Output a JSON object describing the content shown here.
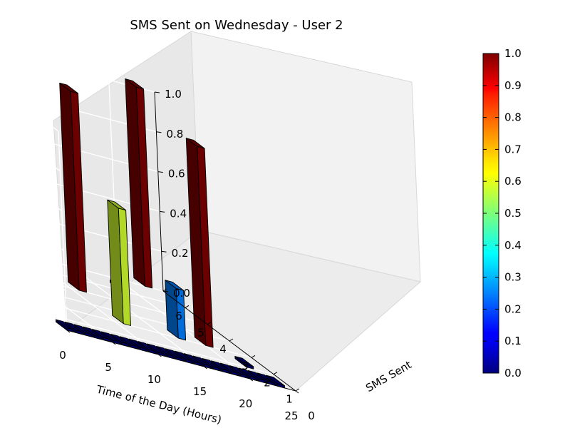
{
  "chart_data": {
    "type": "bar3d",
    "title": "SMS Sent on Wednesday - User 2",
    "xlabel": "Time of the Day (Hours)",
    "ylabel": "SMS Sent",
    "zlabel": "",
    "xlim": [
      0,
      25
    ],
    "ylim": [
      0,
      6
    ],
    "zlim": [
      0,
      1
    ],
    "xticks": [
      "0",
      "5",
      "10",
      "15",
      "20",
      "25"
    ],
    "yticks": [
      "0",
      "1",
      "2",
      "3",
      "4",
      "5",
      "6"
    ],
    "zticks": [
      "0.0",
      "0.2",
      "0.4",
      "0.6",
      "0.8",
      "1.0"
    ],
    "grid": true,
    "colormap": "jet",
    "colorbar": {
      "min": 0,
      "max": 1,
      "ticks": [
        "0.0",
        "0.1",
        "0.2",
        "0.3",
        "0.4",
        "0.5",
        "0.6",
        "0.7",
        "0.8",
        "0.9",
        "1.0"
      ]
    },
    "bars": [
      {
        "hour": 0,
        "sms": 0,
        "value": 0
      },
      {
        "hour": 1,
        "sms": 0,
        "value": 0
      },
      {
        "hour": 2,
        "sms": 0,
        "value": 0
      },
      {
        "hour": 3,
        "sms": 0,
        "value": 0
      },
      {
        "hour": 4,
        "sms": 0,
        "value": 0
      },
      {
        "hour": 5,
        "sms": 0,
        "value": 0
      },
      {
        "hour": 6,
        "sms": 0,
        "value": 0
      },
      {
        "hour": 7,
        "sms": 0,
        "value": 0
      },
      {
        "hour": 8,
        "sms": 0,
        "value": 0
      },
      {
        "hour": 9,
        "sms": 0,
        "value": 0
      },
      {
        "hour": 10,
        "sms": 0,
        "value": 0
      },
      {
        "hour": 11,
        "sms": 0,
        "value": 0
      },
      {
        "hour": 12,
        "sms": 0,
        "value": 0
      },
      {
        "hour": 13,
        "sms": 0,
        "value": 0
      },
      {
        "hour": 14,
        "sms": 0,
        "value": 0
      },
      {
        "hour": 15,
        "sms": 0,
        "value": 0
      },
      {
        "hour": 16,
        "sms": 0,
        "value": 0
      },
      {
        "hour": 17,
        "sms": 0,
        "value": 0
      },
      {
        "hour": 18,
        "sms": 0,
        "value": 0
      },
      {
        "hour": 19,
        "sms": 0,
        "value": 0
      },
      {
        "hour": 20,
        "sms": 0,
        "value": 0
      },
      {
        "hour": 21,
        "sms": 0,
        "value": 0
      },
      {
        "hour": 22,
        "sms": 0,
        "value": 0
      },
      {
        "hour": 23,
        "sms": 0,
        "value": 0
      },
      {
        "hour": 11,
        "sms": 2,
        "value": 0.58
      },
      {
        "hour": 11,
        "sms": 4,
        "value": 1.0
      },
      {
        "hour": 17,
        "sms": 2,
        "value": 0.25
      },
      {
        "hour": 20,
        "sms": 2,
        "value": 1.0
      },
      {
        "hour": 18,
        "sms": 5,
        "value": 0
      },
      {
        "hour": 22,
        "sms": 1,
        "value": 0
      },
      {
        "hour": 23,
        "sms": 6,
        "value": 1.0
      }
    ]
  }
}
